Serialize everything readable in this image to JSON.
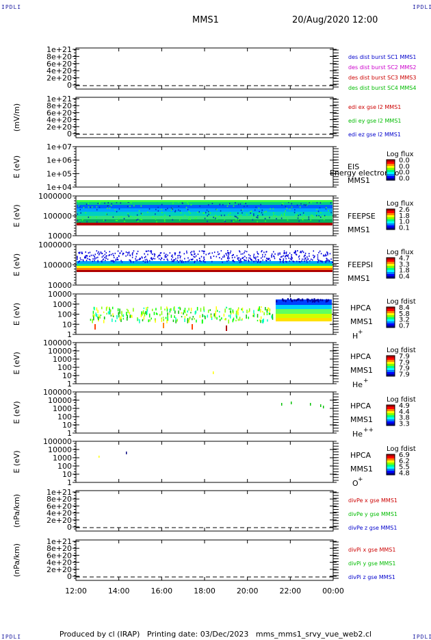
{
  "corner_label": "IPDLI",
  "header": {
    "spacecraft": "MMS1",
    "datetime": "20/Aug/2020 12:00"
  },
  "footer": {
    "produced_by": "Produced by cl (IRAP)",
    "printing_date": "Printing date: 03/Dec/2023",
    "script": "mms_mms1_srvy_vue_web2.cl"
  },
  "time_axis": {
    "ticks": [
      "12:00",
      "14:00",
      "16:00",
      "18:00",
      "20:00",
      "22:00",
      "00:00"
    ],
    "range_hours": [
      12,
      24
    ]
  },
  "chart_data": [
    {
      "type": "line",
      "panel": "des-dist-burst",
      "ylabel": "",
      "yticks": [
        "1e+21",
        "8e+20",
        "6e+20",
        "4e+20",
        "2e+20",
        "0"
      ],
      "ylim": [
        0,
        1e+21
      ],
      "series": [
        {
          "name": "des dist burst SC1 MMS1",
          "color": "#0000cc",
          "values": []
        },
        {
          "name": "des dist burst SC2 MMS2",
          "color": "#cc00cc",
          "values": []
        },
        {
          "name": "des dist burst SC3 MMS3",
          "color": "#cc0000",
          "values": []
        },
        {
          "name": "des dist burst SC4 MMS4",
          "color": "#00bb00",
          "values": []
        }
      ],
      "zero_line": "dashed"
    },
    {
      "type": "line",
      "panel": "edi",
      "ylabel": "(mV/m)",
      "yticks": [
        "1e+21",
        "8e+20",
        "6e+20",
        "4e+20",
        "2e+20",
        "0"
      ],
      "ylim": [
        0,
        1e+21
      ],
      "series": [
        {
          "name": "edi ex gse l2 MMS1",
          "color": "#cc0000",
          "values": []
        },
        {
          "name": "edi ey gse l2 MMS1",
          "color": "#00bb00",
          "values": []
        },
        {
          "name": "edi ez gse l2 MMS1",
          "color": "#0000cc",
          "values": []
        }
      ],
      "zero_line": "dashed"
    },
    {
      "type": "heatmap",
      "panel": "eis",
      "ylabel": "E (eV)",
      "yticks": [
        "1e+07",
        "1e+06",
        "1e+05",
        "1e+04"
      ],
      "log_y": true,
      "instrument": "EIS",
      "spacecraft": "MMS1",
      "overlay_text": "Energy electron to",
      "colorbar": {
        "title": "Log flux",
        "ticks": [
          "0.0",
          "0.0",
          "0.0",
          "0.0"
        ]
      }
    },
    {
      "type": "heatmap",
      "panel": "feeps-e",
      "ylabel": "E (eV)",
      "yticks": [
        "1000000",
        "100000",
        "10000"
      ],
      "log_y": true,
      "instrument": "FEEPSE",
      "spacecraft": "MMS1",
      "colorbar": {
        "title": "Log flux",
        "ticks": [
          "2.6",
          "1.8",
          "1.0",
          "0.1"
        ]
      }
    },
    {
      "type": "heatmap",
      "panel": "feeps-i",
      "ylabel": "E (eV)",
      "yticks": [
        "1000000",
        "100000",
        "10000"
      ],
      "log_y": true,
      "instrument": "FEEPSI",
      "spacecraft": "MMS1",
      "colorbar": {
        "title": "Log flux",
        "ticks": [
          "4.7",
          "3.3",
          "1.8",
          "0.4"
        ]
      }
    },
    {
      "type": "heatmap",
      "panel": "hpca-h",
      "ylabel": "E (eV)",
      "yticks": [
        "10000",
        "1000",
        "100",
        "10",
        "1"
      ],
      "log_y": true,
      "instrument": "HPCA",
      "spacecraft": "MMS1",
      "species": "H",
      "charge": "+",
      "colorbar": {
        "title": "Log fdist",
        "ticks": [
          "8.4",
          "5.8",
          "3.2",
          "0.7"
        ]
      }
    },
    {
      "type": "heatmap",
      "panel": "hpca-he",
      "ylabel": "E (eV)",
      "yticks": [
        "100000",
        "10000",
        "1000",
        "100",
        "10",
        "1"
      ],
      "log_y": true,
      "instrument": "HPCA",
      "spacecraft": "MMS1",
      "species": "He",
      "charge": "+",
      "colorbar": {
        "title": "Log fdist",
        "ticks": [
          "7.9",
          "7.9",
          "7.9",
          "7.9"
        ]
      }
    },
    {
      "type": "heatmap",
      "panel": "hpca-he2",
      "ylabel": "E (eV)",
      "yticks": [
        "100000",
        "10000",
        "1000",
        "100",
        "10",
        "1"
      ],
      "log_y": true,
      "instrument": "HPCA",
      "spacecraft": "MMS1",
      "species": "He",
      "charge": "++",
      "colorbar": {
        "title": "Log fdist",
        "ticks": [
          "4.9",
          "4.4",
          "3.8",
          "3.3"
        ]
      }
    },
    {
      "type": "heatmap",
      "panel": "hpca-o",
      "ylabel": "E (eV)",
      "yticks": [
        "100000",
        "10000",
        "1000",
        "100",
        "10",
        "1"
      ],
      "log_y": true,
      "instrument": "HPCA",
      "spacecraft": "MMS1",
      "species": "O",
      "charge": "+",
      "colorbar": {
        "title": "Log fdist",
        "ticks": [
          "6.9",
          "6.2",
          "5.5",
          "4.8"
        ]
      }
    },
    {
      "type": "line",
      "panel": "divpe",
      "ylabel": "(nPa/km)",
      "yticks": [
        "1e+21",
        "8e+20",
        "6e+20",
        "4e+20",
        "2e+20",
        "0"
      ],
      "ylim": [
        0,
        1e+21
      ],
      "series": [
        {
          "name": "divPe x gse MMS1",
          "color": "#cc0000",
          "values": []
        },
        {
          "name": "divPe y gse MMS1",
          "color": "#00bb00",
          "values": []
        },
        {
          "name": "divPe z gse MMS1",
          "color": "#0000cc",
          "values": []
        }
      ],
      "zero_line": "dashed"
    },
    {
      "type": "line",
      "panel": "divpi",
      "ylabel": "(nPa/km)",
      "yticks": [
        "1e+21",
        "8e+20",
        "6e+20",
        "4e+20",
        "2e+20",
        "0"
      ],
      "ylim": [
        0,
        1e+21
      ],
      "series": [
        {
          "name": "divPi x gse MMS1",
          "color": "#cc0000",
          "values": []
        },
        {
          "name": "divPi y gse MMS1",
          "color": "#00bb00",
          "values": []
        },
        {
          "name": "divPi z gse MMS1",
          "color": "#0000cc",
          "values": []
        }
      ],
      "zero_line": "dashed"
    }
  ]
}
